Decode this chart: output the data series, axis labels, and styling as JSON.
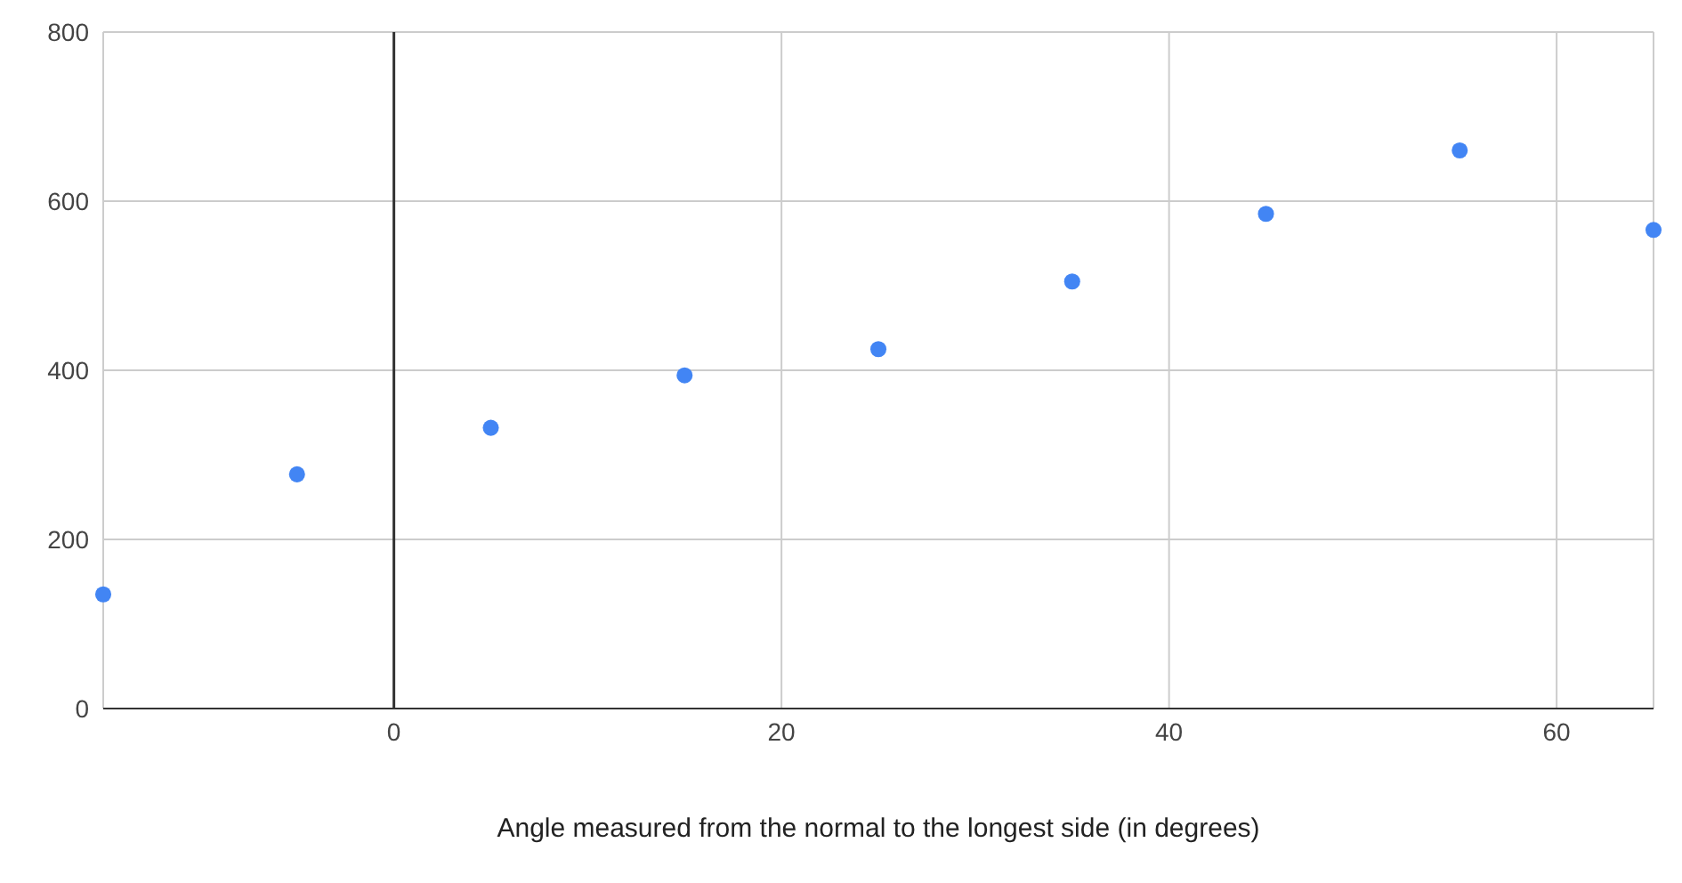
{
  "chart_data": {
    "type": "scatter",
    "xlabel": "Angle measured from the normal to the longest side (in degrees)",
    "x": [
      -15,
      -5,
      5,
      15,
      25,
      35,
      45,
      55,
      65
    ],
    "series": [
      {
        "color": "#4285f4",
        "values": [
          135,
          277,
          332,
          394,
          425,
          505,
          585,
          660,
          566
        ]
      }
    ],
    "xlim": [
      -15,
      65
    ],
    "xticks": [
      0,
      20,
      40,
      60
    ],
    "ylim": [
      0,
      800
    ],
    "yticks": [
      0,
      200,
      400,
      600,
      800
    ],
    "grid": true,
    "marker": "circle",
    "ref_lines": [
      {
        "axis": "x",
        "value": 0,
        "color": "#333333"
      }
    ]
  }
}
